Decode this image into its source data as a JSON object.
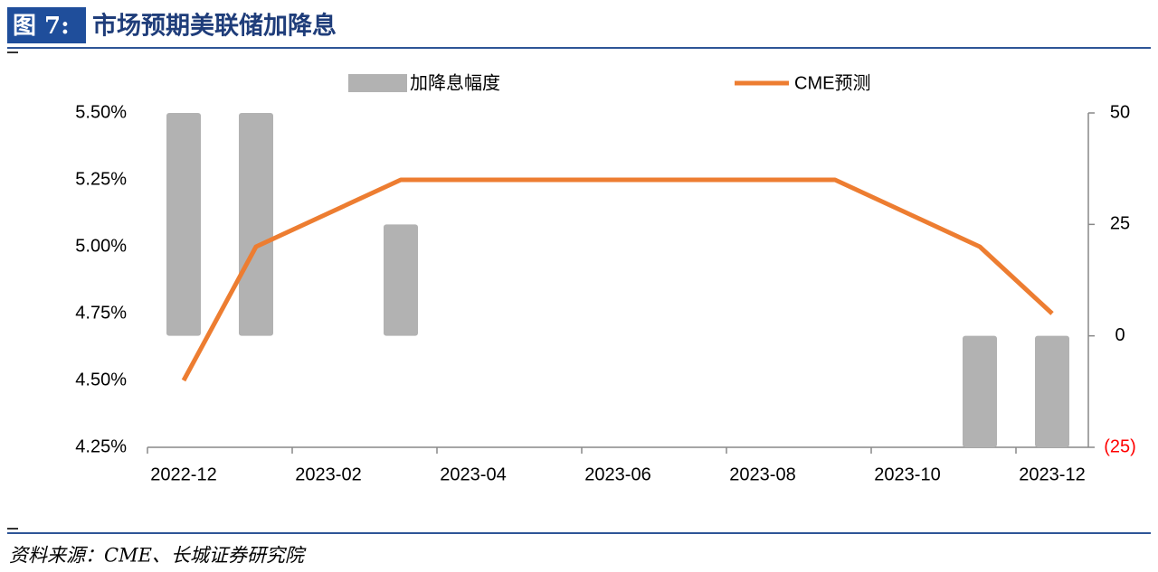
{
  "header": {
    "figure_label": "图 7:",
    "title": "市场预期美联储加降息"
  },
  "chart_data": {
    "type": "combo",
    "categories": [
      "2022-12",
      null,
      "2023-02",
      null,
      "2023-04",
      null,
      "2023-06",
      null,
      "2023-08",
      null,
      "2023-10",
      null,
      "2023-12"
    ],
    "series": [
      {
        "name": "加降息幅度",
        "type": "bar",
        "axis": "y2",
        "color": "#b2b2b2",
        "values": [
          50,
          50,
          null,
          25,
          null,
          null,
          null,
          null,
          null,
          null,
          null,
          -25,
          -25
        ]
      },
      {
        "name": "CME预测",
        "type": "line",
        "color": "#ed7d31",
        "values": [
          4.5,
          5.0,
          5.125,
          5.25,
          5.25,
          5.25,
          5.25,
          5.25,
          5.25,
          5.25,
          5.125,
          5.0,
          4.75
        ]
      }
    ],
    "ylim": [
      4.25,
      5.5
    ],
    "yticks": [
      {
        "value": 4.25,
        "label": "4.25%"
      },
      {
        "value": 4.5,
        "label": "4.50%"
      },
      {
        "value": 4.75,
        "label": "4.75%"
      },
      {
        "value": 5.0,
        "label": "5.00%"
      },
      {
        "value": 5.25,
        "label": "5.25%"
      },
      {
        "value": 5.5,
        "label": "5.50%"
      }
    ],
    "y2lim": [
      -25,
      50
    ],
    "y2ticks": [
      {
        "value": -25,
        "label": "(25)"
      },
      0,
      25,
      50
    ],
    "negative_tick_color": "#ff0000",
    "legend": "top"
  },
  "source": "资料来源：CME、长城证券研究院"
}
